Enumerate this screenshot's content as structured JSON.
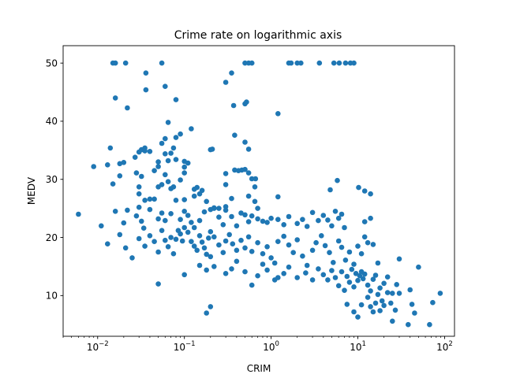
{
  "chart_data": {
    "type": "scatter",
    "title": "Crime rate on logarithmic axis",
    "xlabel": "CRIM",
    "ylabel": "MEDV",
    "xscale": "log",
    "xlim": [
      0.004,
      130
    ],
    "ylim": [
      3,
      53
    ],
    "x_ticks": [
      {
        "value": 0.01,
        "base": "10",
        "exp": "−2"
      },
      {
        "value": 0.1,
        "base": "10",
        "exp": "−1"
      },
      {
        "value": 1,
        "base": "10",
        "exp": "0"
      },
      {
        "value": 10,
        "base": "10",
        "exp": "1"
      },
      {
        "value": 100,
        "base": "10",
        "exp": "2"
      }
    ],
    "y_ticks": [
      10,
      20,
      30,
      40,
      50
    ],
    "grid": false,
    "color": "#1f77b4",
    "points": [
      [
        0.015,
        50
      ],
      [
        0.016,
        50
      ],
      [
        0.021,
        50
      ],
      [
        0.055,
        50
      ],
      [
        0.5,
        50
      ],
      [
        0.55,
        50
      ],
      [
        0.6,
        50
      ],
      [
        1.6,
        50
      ],
      [
        1.7,
        50
      ],
      [
        2.0,
        50
      ],
      [
        2.2,
        50
      ],
      [
        3.6,
        50
      ],
      [
        5.3,
        50
      ],
      [
        6.1,
        50
      ],
      [
        7.2,
        50
      ],
      [
        8.2,
        50
      ],
      [
        9.0,
        50
      ],
      [
        0.036,
        48.3
      ],
      [
        0.3,
        46.7
      ],
      [
        0.35,
        48.3
      ],
      [
        0.036,
        45.4
      ],
      [
        0.06,
        46
      ],
      [
        0.016,
        44
      ],
      [
        0.08,
        43.7
      ],
      [
        0.5,
        43
      ],
      [
        0.52,
        43.3
      ],
      [
        0.37,
        42.7
      ],
      [
        0.022,
        42.3
      ],
      [
        1.2,
        41.3
      ],
      [
        0.055,
        36.2
      ],
      [
        0.065,
        39.8
      ],
      [
        0.08,
        37.2
      ],
      [
        0.09,
        37.8
      ],
      [
        0.12,
        38.7
      ],
      [
        0.06,
        37
      ],
      [
        0.075,
        35.4
      ],
      [
        0.38,
        37.6
      ],
      [
        0.5,
        36.4
      ],
      [
        0.032,
        35.1
      ],
      [
        0.035,
        35.4
      ],
      [
        0.014,
        35.4
      ],
      [
        0.2,
        35.1
      ],
      [
        0.21,
        35.2
      ],
      [
        0.06,
        34.4
      ],
      [
        0.04,
        34.8
      ],
      [
        0.035,
        34.9
      ],
      [
        0.03,
        34.7
      ],
      [
        0.07,
        34.5
      ],
      [
        0.55,
        35.2
      ],
      [
        0.027,
        33.8
      ],
      [
        0.05,
        33
      ],
      [
        0.065,
        33.2
      ],
      [
        0.08,
        33.4
      ],
      [
        0.1,
        33.1
      ],
      [
        0.11,
        32.8
      ],
      [
        0.018,
        32.7
      ],
      [
        0.02,
        32.9
      ],
      [
        0.013,
        32.5
      ],
      [
        0.009,
        32.2
      ],
      [
        0.045,
        31.5
      ],
      [
        0.05,
        32.2
      ],
      [
        0.1,
        32.1
      ],
      [
        0.38,
        31.6
      ],
      [
        0.42,
        31.5
      ],
      [
        0.46,
        31.6
      ],
      [
        0.5,
        31.7
      ],
      [
        0.55,
        31.1
      ],
      [
        0.3,
        31
      ],
      [
        0.018,
        30.6
      ],
      [
        0.028,
        31.1
      ],
      [
        0.032,
        30.5
      ],
      [
        0.06,
        30.8
      ],
      [
        0.09,
        29.9
      ],
      [
        0.1,
        31.1
      ],
      [
        0.055,
        29.1
      ],
      [
        0.05,
        28.7
      ],
      [
        0.07,
        28.4
      ],
      [
        0.065,
        29.6
      ],
      [
        0.075,
        28.7
      ],
      [
        0.14,
        28.6
      ],
      [
        0.16,
        28.1
      ],
      [
        0.13,
        28.3
      ],
      [
        0.6,
        30.1
      ],
      [
        0.66,
        30.1
      ],
      [
        0.65,
        28.7
      ],
      [
        0.3,
        29.1
      ],
      [
        0.015,
        29.2
      ],
      [
        0.03,
        28.7
      ],
      [
        0.04,
        26.6
      ],
      [
        0.03,
        27.5
      ],
      [
        0.035,
        26.4
      ],
      [
        0.045,
        26.6
      ],
      [
        0.08,
        26.4
      ],
      [
        0.1,
        26.5
      ],
      [
        0.13,
        27.1
      ],
      [
        0.15,
        27.5
      ],
      [
        0.18,
        26.2
      ],
      [
        0.22,
        25.1
      ],
      [
        0.25,
        25
      ],
      [
        0.3,
        25.3
      ],
      [
        0.35,
        26.7
      ],
      [
        0.55,
        27.1
      ],
      [
        0.65,
        26.2
      ],
      [
        1.2,
        27
      ],
      [
        0.7,
        25
      ],
      [
        5.8,
        29.8
      ],
      [
        4.8,
        28.2
      ],
      [
        10.2,
        28.6
      ],
      [
        12,
        28
      ],
      [
        14,
        27.5
      ],
      [
        5.5,
        24.5
      ],
      [
        0.006,
        24
      ],
      [
        0.011,
        22
      ],
      [
        0.013,
        18.9
      ],
      [
        0.016,
        24.5
      ],
      [
        0.02,
        22.5
      ],
      [
        0.022,
        24.7
      ],
      [
        0.028,
        23.7
      ],
      [
        0.03,
        25.2
      ],
      [
        0.032,
        22.8
      ],
      [
        0.034,
        21.6
      ],
      [
        0.04,
        24.8
      ],
      [
        0.05,
        23.2
      ],
      [
        0.055,
        24.2
      ],
      [
        0.06,
        22.9
      ],
      [
        0.07,
        24.1
      ],
      [
        0.09,
        23.1
      ],
      [
        0.1,
        24.5
      ],
      [
        0.11,
        23.8
      ],
      [
        0.12,
        22.6
      ],
      [
        0.13,
        21.7
      ],
      [
        0.15,
        22.9
      ],
      [
        0.17,
        24.4
      ],
      [
        0.2,
        24.8
      ],
      [
        0.22,
        25
      ],
      [
        0.25,
        23.5
      ],
      [
        0.28,
        22.2
      ],
      [
        0.3,
        24.7
      ],
      [
        0.35,
        23.6
      ],
      [
        0.4,
        22
      ],
      [
        0.45,
        24.2
      ],
      [
        0.5,
        23.9
      ],
      [
        0.55,
        22.7
      ],
      [
        0.6,
        23.7
      ],
      [
        0.7,
        23.2
      ],
      [
        0.8,
        22.8
      ],
      [
        0.9,
        22.6
      ],
      [
        1.0,
        23.3
      ],
      [
        1.2,
        23.1
      ],
      [
        1.4,
        22.2
      ],
      [
        1.6,
        23.6
      ],
      [
        2.0,
        22.4
      ],
      [
        2.3,
        23.1
      ],
      [
        2.6,
        21.9
      ],
      [
        3.0,
        24.3
      ],
      [
        3.5,
        22.9
      ],
      [
        4.0,
        23.8
      ],
      [
        4.5,
        23
      ],
      [
        5.0,
        22
      ],
      [
        6.0,
        23.3
      ],
      [
        6.5,
        24
      ],
      [
        7.0,
        21.7
      ],
      [
        12.0,
        22.7
      ],
      [
        14.0,
        23.3
      ],
      [
        0.018,
        20.5
      ],
      [
        0.021,
        18.2
      ],
      [
        0.025,
        16.5
      ],
      [
        0.03,
        19.8
      ],
      [
        0.035,
        18.5
      ],
      [
        0.04,
        20.3
      ],
      [
        0.045,
        19.3
      ],
      [
        0.05,
        17.5
      ],
      [
        0.055,
        21.2
      ],
      [
        0.06,
        19.5
      ],
      [
        0.065,
        18.4
      ],
      [
        0.07,
        20
      ],
      [
        0.075,
        17.2
      ],
      [
        0.08,
        19.7
      ],
      [
        0.085,
        21.2
      ],
      [
        0.09,
        20.6
      ],
      [
        0.095,
        19.4
      ],
      [
        0.1,
        21.7
      ],
      [
        0.11,
        20.9
      ],
      [
        0.12,
        19.3
      ],
      [
        0.13,
        18.5
      ],
      [
        0.14,
        17.8
      ],
      [
        0.15,
        20.3
      ],
      [
        0.16,
        19.2
      ],
      [
        0.17,
        18.2
      ],
      [
        0.18,
        17.1
      ],
      [
        0.19,
        19.9
      ],
      [
        0.2,
        21
      ],
      [
        0.22,
        20.1
      ],
      [
        0.25,
        18.7
      ],
      [
        0.28,
        17.4
      ],
      [
        0.3,
        19.4
      ],
      [
        0.33,
        20.5
      ],
      [
        0.36,
        18.9
      ],
      [
        0.4,
        17.8
      ],
      [
        0.45,
        19.5
      ],
      [
        0.5,
        18.2
      ],
      [
        0.55,
        20.1
      ],
      [
        0.6,
        17.6
      ],
      [
        0.7,
        19.1
      ],
      [
        0.8,
        17.2
      ],
      [
        0.9,
        18.4
      ],
      [
        1.0,
        16.5
      ],
      [
        1.1,
        15.6
      ],
      [
        1.2,
        19.3
      ],
      [
        1.4,
        20.2
      ],
      [
        1.6,
        18.7
      ],
      [
        1.8,
        17.4
      ],
      [
        2.0,
        19.6
      ],
      [
        2.3,
        16.8
      ],
      [
        2.6,
        15.2
      ],
      [
        3.0,
        17.8
      ],
      [
        3.3,
        19.1
      ],
      [
        3.8,
        20.3
      ],
      [
        4.2,
        18.6
      ],
      [
        4.7,
        17.4
      ],
      [
        5.2,
        15.7
      ],
      [
        6.0,
        19.4
      ],
      [
        6.5,
        18.3
      ],
      [
        7.2,
        16.1
      ],
      [
        8.0,
        17.5
      ],
      [
        9.0,
        15.4
      ],
      [
        10.0,
        18.5
      ],
      [
        11.0,
        17.2
      ],
      [
        12.0,
        20.1
      ],
      [
        13.0,
        19.1
      ],
      [
        15.0,
        18.8
      ],
      [
        17.0,
        15.6
      ],
      [
        0.05,
        12
      ],
      [
        0.1,
        13.6
      ],
      [
        0.15,
        15.2
      ],
      [
        0.18,
        14.4
      ],
      [
        0.2,
        16.7
      ],
      [
        0.22,
        15
      ],
      [
        0.3,
        13.8
      ],
      [
        0.35,
        14.6
      ],
      [
        0.4,
        15.9
      ],
      [
        0.5,
        14.1
      ],
      [
        0.6,
        11.8
      ],
      [
        0.7,
        13.4
      ],
      [
        0.8,
        15.4
      ],
      [
        0.9,
        14.4
      ],
      [
        1.1,
        12.7
      ],
      [
        1.2,
        13.1
      ],
      [
        1.4,
        13.8
      ],
      [
        1.6,
        14.9
      ],
      [
        2.0,
        13.1
      ],
      [
        2.5,
        13.9
      ],
      [
        3.0,
        12.7
      ],
      [
        3.5,
        14.6
      ],
      [
        4.0,
        13.6
      ],
      [
        4.5,
        12.7
      ],
      [
        5.0,
        14.3
      ],
      [
        5.5,
        13.1
      ],
      [
        6.0,
        11.7
      ],
      [
        6.5,
        14.1
      ],
      [
        7.0,
        10.9
      ],
      [
        7.5,
        13.3
      ],
      [
        8.0,
        12.3
      ],
      [
        8.5,
        14.5
      ],
      [
        9.0,
        11.5
      ],
      [
        9.5,
        13.8
      ],
      [
        10.0,
        12.6
      ],
      [
        10.5,
        13.4
      ],
      [
        11.0,
        14.1
      ],
      [
        11.5,
        12.9
      ],
      [
        12.0,
        13.7
      ],
      [
        13.0,
        11.8
      ],
      [
        14.0,
        10.8
      ],
      [
        15.0,
        12.8
      ],
      [
        16.0,
        13.5
      ],
      [
        18.0,
        11.3
      ],
      [
        20.0,
        12.1
      ],
      [
        22.0,
        13.2
      ],
      [
        25.0,
        10.4
      ],
      [
        28.0,
        11.9
      ],
      [
        30.0,
        16.3
      ],
      [
        50.0,
        14.9
      ],
      [
        7.5,
        8.5
      ],
      [
        9.0,
        7.2
      ],
      [
        10.0,
        6.3
      ],
      [
        11.0,
        8.4
      ],
      [
        13.0,
        9.7
      ],
      [
        14.0,
        8.1
      ],
      [
        15.0,
        7.2
      ],
      [
        16.0,
        8.7
      ],
      [
        17.0,
        10.2
      ],
      [
        18.0,
        7.4
      ],
      [
        19.0,
        9.1
      ],
      [
        20.0,
        8.3
      ],
      [
        22.0,
        10.5
      ],
      [
        24.0,
        8.7
      ],
      [
        25.0,
        5.6
      ],
      [
        27.0,
        7.5
      ],
      [
        30.0,
        10.4
      ],
      [
        38.0,
        5.0
      ],
      [
        40.0,
        11
      ],
      [
        42.0,
        8.5
      ],
      [
        45.0,
        7
      ],
      [
        67.0,
        5.0
      ],
      [
        73.0,
        8.8
      ],
      [
        89.0,
        10.4
      ],
      [
        0.18,
        7.0
      ],
      [
        0.2,
        8.1
      ]
    ]
  }
}
